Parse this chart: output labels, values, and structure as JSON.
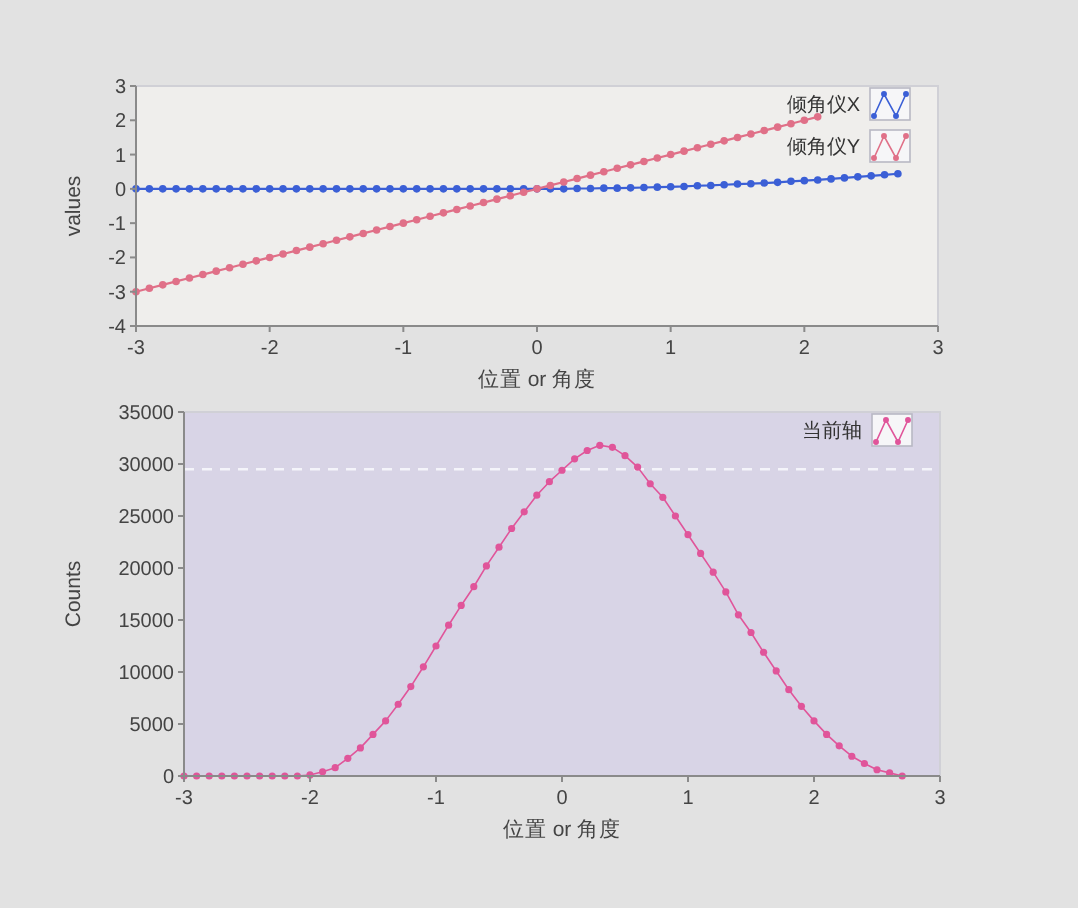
{
  "chart_data": [
    {
      "type": "line",
      "xlabel": "位置 or 角度",
      "ylabel": "values",
      "xlim": [
        -3,
        3
      ],
      "xticks": [
        -3,
        -2,
        -1,
        0,
        1,
        2,
        3
      ],
      "ylim": [
        -4,
        3
      ],
      "yticks": [
        -4,
        -3,
        -2,
        -1,
        0,
        1,
        2,
        3
      ],
      "legend": "top right",
      "marker": "circle",
      "line_style": "solid",
      "x": [
        -3,
        -2.9,
        -2.8,
        -2.7,
        -2.6,
        -2.5,
        -2.4,
        -2.3,
        -2.2,
        -2.1,
        -2,
        -1.9,
        -1.8,
        -1.7,
        -1.6,
        -1.5,
        -1.4,
        -1.3,
        -1.2,
        -1.1,
        -1,
        -0.9,
        -0.8,
        -0.7,
        -0.6,
        -0.5,
        -0.4,
        -0.3,
        -0.2,
        -0.1,
        0,
        0.1,
        0.2,
        0.3,
        0.4,
        0.5,
        0.6,
        0.7,
        0.8,
        0.9,
        1,
        1.1,
        1.2,
        1.3,
        1.4,
        1.5,
        1.6,
        1.7,
        1.8,
        1.9,
        2,
        2.1,
        2.2,
        2.3,
        2.4,
        2.5,
        2.6,
        2.7
      ],
      "series": [
        {
          "name": "倾角仪X",
          "color": "#3b5fd6",
          "values": [
            0,
            0,
            0,
            0,
            0,
            0,
            0,
            0,
            0,
            0,
            0,
            0,
            0,
            0,
            0,
            0,
            0,
            0,
            0,
            0,
            0,
            0,
            0,
            0,
            0,
            0,
            0,
            0,
            0,
            0,
            0,
            0,
            0,
            0.01,
            0.01,
            0.02,
            0.02,
            0.03,
            0.04,
            0.05,
            0.06,
            0.07,
            0.09,
            0.1,
            0.12,
            0.14,
            0.15,
            0.17,
            0.19,
            0.22,
            0.24,
            0.26,
            0.29,
            0.32,
            0.35,
            0.38,
            0.41,
            0.44
          ]
        },
        {
          "name": "倾角仪Y",
          "color": "#e07088",
          "values": [
            -3,
            -2.9,
            -2.8,
            -2.7,
            -2.6,
            -2.5,
            -2.4,
            -2.3,
            -2.2,
            -2.1,
            -2,
            -1.9,
            -1.8,
            -1.7,
            -1.6,
            -1.5,
            -1.4,
            -1.3,
            -1.2,
            -1.1,
            -1,
            -0.9,
            -0.8,
            -0.7,
            -0.6,
            -0.5,
            -0.4,
            -0.3,
            -0.2,
            -0.1,
            0,
            0.1,
            0.2,
            0.3,
            0.4,
            0.5,
            0.6,
            0.7,
            0.8,
            0.9,
            1,
            1.1,
            1.2,
            1.3,
            1.4,
            1.5,
            1.6,
            1.7,
            1.8,
            1.9,
            2,
            2.1,
            null,
            null,
            null,
            null,
            null,
            null
          ]
        }
      ]
    },
    {
      "type": "line",
      "xlabel": "位置 or 角度",
      "ylabel": "Counts",
      "xlim": [
        -3,
        3
      ],
      "xticks": [
        -3,
        -2,
        -1,
        0,
        1,
        2,
        3
      ],
      "ylim": [
        0,
        35000
      ],
      "yticks": [
        0,
        5000,
        10000,
        15000,
        20000,
        25000,
        30000,
        35000
      ],
      "legend": "top right",
      "marker": "circle",
      "line_style": "solid",
      "x": [
        -3,
        -2.9,
        -2.8,
        -2.7,
        -2.6,
        -2.5,
        -2.4,
        -2.3,
        -2.2,
        -2.1,
        -2,
        -1.9,
        -1.8,
        -1.7,
        -1.6,
        -1.5,
        -1.4,
        -1.3,
        -1.2,
        -1.1,
        -1,
        -0.9,
        -0.8,
        -0.7,
        -0.6,
        -0.5,
        -0.4,
        -0.3,
        -0.2,
        -0.1,
        0,
        0.1,
        0.2,
        0.3,
        0.4,
        0.5,
        0.6,
        0.7,
        0.8,
        0.9,
        1,
        1.1,
        1.2,
        1.3,
        1.4,
        1.5,
        1.6,
        1.7,
        1.8,
        1.9,
        2,
        2.1,
        2.2,
        2.3,
        2.4,
        2.5,
        2.6,
        2.7
      ],
      "series": [
        {
          "name": "当前轴",
          "color": "#e0559a",
          "values": [
            0,
            0,
            0,
            0,
            0,
            0,
            0,
            0,
            0,
            0,
            100,
            400,
            800,
            1700,
            2700,
            4000,
            5300,
            6900,
            8600,
            10500,
            12500,
            14500,
            16400,
            18200,
            20200,
            22000,
            23800,
            25400,
            27000,
            28300,
            29400,
            30500,
            31300,
            31800,
            31600,
            30800,
            29700,
            28100,
            26800,
            25000,
            23200,
            21400,
            19600,
            17700,
            15500,
            13800,
            11900,
            10100,
            8300,
            6700,
            5300,
            4000,
            2900,
            1900,
            1200,
            600,
            300,
            0
          ]
        }
      ],
      "ref_lines": [
        {
          "axis": "y",
          "value": 29500,
          "color": "#f4f4fa",
          "line_style": "dashed"
        }
      ]
    }
  ]
}
